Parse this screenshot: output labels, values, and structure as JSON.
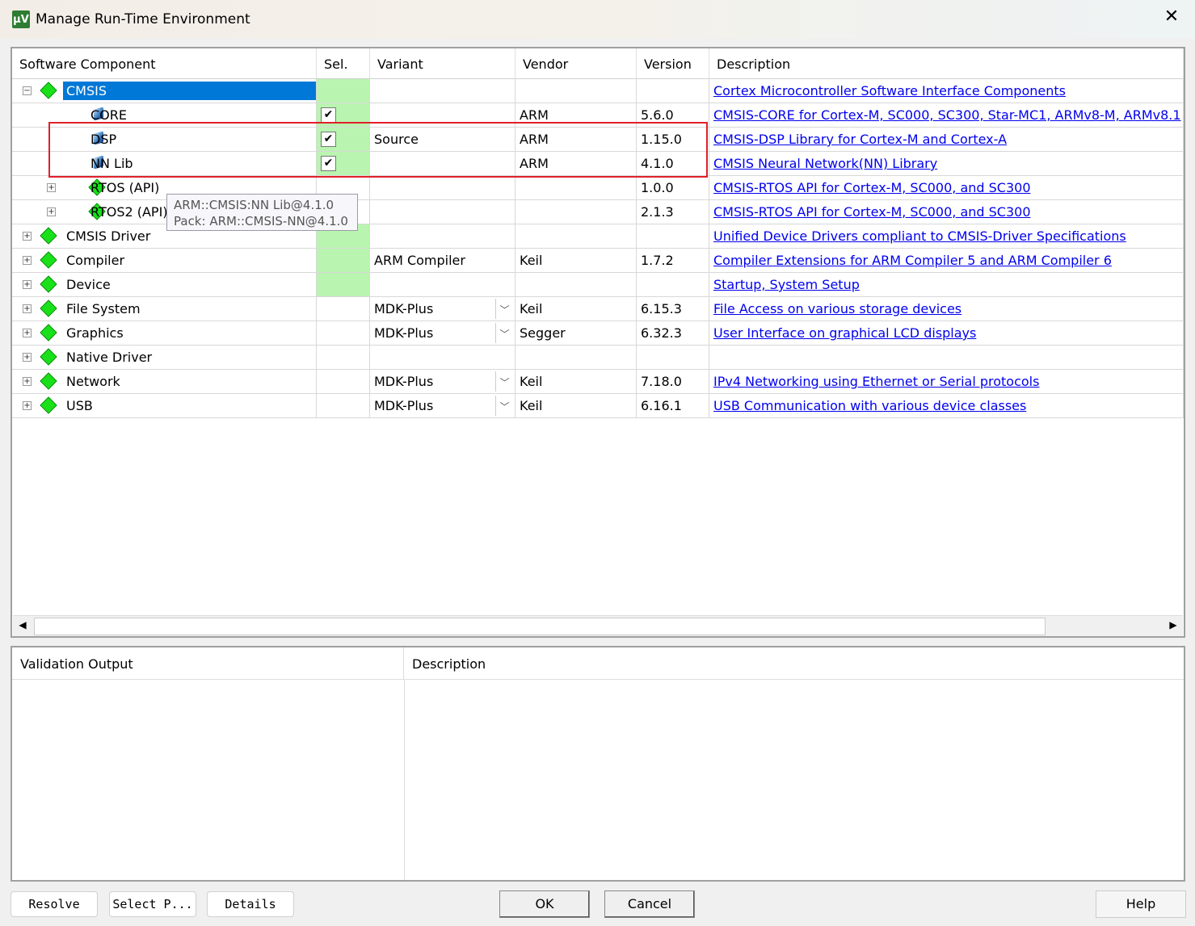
{
  "window": {
    "title": "Manage Run-Time Environment",
    "close": "✕",
    "icon": "uvision-icon"
  },
  "columns": [
    "Software Component",
    "Sel.",
    "Variant",
    "Vendor",
    "Version",
    "Description"
  ],
  "rows": [
    {
      "name": "CMSIS",
      "level": 0,
      "expander": "−",
      "icon": "component-gem-icon",
      "selected_row": true,
      "sel_green": true,
      "checked": null,
      "variant": "",
      "dropdown": false,
      "vendor": "",
      "version": "",
      "description": "Cortex Microcontroller Software Interface Components"
    },
    {
      "name": "CORE",
      "level": 1,
      "expander": "",
      "icon": "component-blue-icon",
      "sel_green": true,
      "checked": true,
      "variant": "",
      "dropdown": false,
      "vendor": "ARM",
      "version": "5.6.0",
      "description": "CMSIS-CORE for Cortex-M, SC000, SC300, Star-MC1, ARMv8-M, ARMv8.1"
    },
    {
      "name": "DSP",
      "level": 1,
      "expander": "",
      "icon": "component-blue-icon",
      "sel_green": true,
      "checked": true,
      "variant": "Source",
      "dropdown": false,
      "vendor": "ARM",
      "version": "1.15.0",
      "description": "CMSIS-DSP Library for Cortex-M and Cortex-A"
    },
    {
      "name": "NN Lib",
      "level": 1,
      "expander": "",
      "icon": "component-blue-icon",
      "sel_green": true,
      "checked": true,
      "variant": "",
      "dropdown": false,
      "vendor": "ARM",
      "version": "4.1.0",
      "description": "CMSIS Neural Network(NN) Library"
    },
    {
      "name": "RTOS (API)",
      "level": 1,
      "expander": "+",
      "icon": "component-gem-icon",
      "sel_green": false,
      "checked": null,
      "variant": "",
      "dropdown": false,
      "vendor": "",
      "version": "1.0.0",
      "description": "CMSIS-RTOS API for Cortex-M, SC000, and SC300"
    },
    {
      "name": "RTOS2 (API)",
      "level": 1,
      "expander": "+",
      "icon": "component-gem-icon",
      "sel_green": false,
      "checked": null,
      "variant": "",
      "dropdown": false,
      "vendor": "",
      "version": "2.1.3",
      "description": "CMSIS-RTOS API for Cortex-M, SC000, and SC300"
    },
    {
      "name": "CMSIS Driver",
      "level": 0,
      "expander": "+",
      "icon": "component-gem-icon",
      "sel_green": true,
      "checked": null,
      "variant": "",
      "dropdown": false,
      "vendor": "",
      "version": "",
      "description": "Unified Device Drivers compliant to CMSIS-Driver Specifications"
    },
    {
      "name": "Compiler",
      "level": 0,
      "expander": "+",
      "icon": "component-gem-icon",
      "sel_green": true,
      "checked": null,
      "variant": "ARM Compiler",
      "dropdown": false,
      "vendor": "Keil",
      "version": "1.7.2",
      "description": "Compiler Extensions for ARM Compiler 5 and ARM Compiler 6"
    },
    {
      "name": "Device",
      "level": 0,
      "expander": "+",
      "icon": "component-gem-icon",
      "sel_green": true,
      "checked": null,
      "variant": "",
      "dropdown": false,
      "vendor": "",
      "version": "",
      "description": "Startup, System Setup"
    },
    {
      "name": "File System",
      "level": 0,
      "expander": "+",
      "icon": "component-gem-icon",
      "sel_green": false,
      "checked": null,
      "variant": "MDK-Plus",
      "dropdown": true,
      "vendor": "Keil",
      "version": "6.15.3",
      "description": "File Access on various storage devices"
    },
    {
      "name": "Graphics",
      "level": 0,
      "expander": "+",
      "icon": "component-gem-icon",
      "sel_green": false,
      "checked": null,
      "variant": "MDK-Plus",
      "dropdown": true,
      "vendor": "Segger",
      "version": "6.32.3",
      "description": "User Interface on graphical LCD displays"
    },
    {
      "name": "Native Driver",
      "level": 0,
      "expander": "+",
      "icon": "component-gem-icon",
      "sel_green": false,
      "checked": null,
      "variant": "",
      "dropdown": false,
      "vendor": "",
      "version": "",
      "description": ""
    },
    {
      "name": "Network",
      "level": 0,
      "expander": "+",
      "icon": "component-gem-icon",
      "sel_green": false,
      "checked": null,
      "variant": "MDK-Plus",
      "dropdown": true,
      "vendor": "Keil",
      "version": "7.18.0",
      "description": "IPv4 Networking using Ethernet or Serial protocols"
    },
    {
      "name": "USB",
      "level": 0,
      "expander": "+",
      "icon": "component-gem-icon",
      "sel_green": false,
      "checked": null,
      "variant": "MDK-Plus",
      "dropdown": true,
      "vendor": "Keil",
      "version": "6.16.1",
      "description": "USB Communication with various device classes"
    }
  ],
  "tooltip": {
    "line1": "ARM::CMSIS:NN Lib@4.1.0",
    "line2": "Pack: ARM::CMSIS-NN@4.1.0"
  },
  "validation": {
    "col1": "Validation Output",
    "col2": "Description"
  },
  "buttons": {
    "resolve": "Resolve",
    "select_packs": "Select P...",
    "details": "Details",
    "ok": "OK",
    "cancel": "Cancel",
    "help": "Help"
  },
  "colors": {
    "selection": "#0078d7",
    "sel_green": "#b9f5b0",
    "highlight_box": "#e0202a",
    "link": "#0000ee"
  }
}
